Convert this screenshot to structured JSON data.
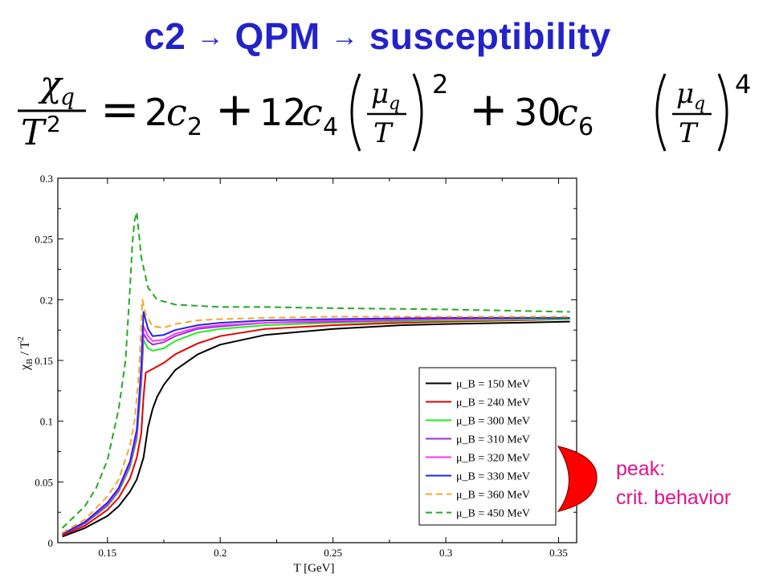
{
  "slide": {
    "title_parts": [
      "c2",
      "QPM",
      "susceptibility"
    ],
    "title_arrow": "→",
    "annotation_lines": [
      "peak:",
      "crit. behavior"
    ],
    "colors": {
      "title": "#2323c8",
      "annotation": "#e0148c",
      "bracket": "#ff0000"
    }
  },
  "formula": {
    "lhs_numerator": "χ",
    "lhs_numerator_sub": "q",
    "lhs_denominator": "T",
    "lhs_denominator_sup": "2",
    "equals": "=",
    "term1_coef": "2",
    "term1_var": "c",
    "term1_sub": "2",
    "plus": "+",
    "term2_coef": "12",
    "term2_var": "c",
    "term2_sub": "4",
    "term3_coef": "30",
    "term3_var": "c",
    "term3_sub": "6",
    "mu": "μ",
    "mu_sub": "q",
    "frac_den": "T",
    "power2": "2",
    "power4": "4"
  },
  "chart_data": {
    "type": "line",
    "xlabel": "T [GeV]",
    "ylabel_main": "χ",
    "ylabel_sub": "B",
    "ylabel_rest": " / T",
    "ylabel_sup": "2",
    "xlim": [
      0.128,
      0.358
    ],
    "ylim": [
      0,
      0.3
    ],
    "xticks": [
      0.15,
      0.2,
      0.25,
      0.3,
      0.35
    ],
    "xtick_labels": [
      "0.15",
      "0.2",
      "0.25",
      "0.3",
      "0.35"
    ],
    "yticks": [
      0,
      0.05,
      0.1,
      0.15,
      0.2,
      0.25,
      0.3
    ],
    "ytick_labels": [
      "0",
      "0.05",
      "0.1",
      "0.15",
      "0.2",
      "0.25",
      "0.3"
    ],
    "legend_position": "bottom-right",
    "series": [
      {
        "name": "μ_B = 150 MeV",
        "color": "#000000",
        "dash": "solid",
        "x": [
          0.13,
          0.14,
          0.15,
          0.155,
          0.16,
          0.163,
          0.166,
          0.168,
          0.17,
          0.172,
          0.175,
          0.18,
          0.19,
          0.2,
          0.22,
          0.25,
          0.28,
          0.3,
          0.33,
          0.355
        ],
        "y": [
          0.005,
          0.012,
          0.022,
          0.03,
          0.042,
          0.052,
          0.07,
          0.095,
          0.11,
          0.12,
          0.13,
          0.142,
          0.155,
          0.163,
          0.171,
          0.176,
          0.179,
          0.18,
          0.181,
          0.182
        ]
      },
      {
        "name": "μ_B = 240 MeV",
        "color": "#e00000",
        "dash": "solid",
        "x": [
          0.13,
          0.14,
          0.15,
          0.155,
          0.16,
          0.163,
          0.165,
          0.166,
          0.167,
          0.17,
          0.175,
          0.18,
          0.19,
          0.2,
          0.22,
          0.25,
          0.28,
          0.3,
          0.33,
          0.355
        ],
        "y": [
          0.006,
          0.014,
          0.027,
          0.037,
          0.053,
          0.07,
          0.09,
          0.12,
          0.14,
          0.143,
          0.148,
          0.155,
          0.164,
          0.17,
          0.176,
          0.179,
          0.181,
          0.182,
          0.183,
          0.184
        ]
      },
      {
        "name": "μ_B = 300 MeV",
        "color": "#22ee22",
        "dash": "solid",
        "x": [
          0.13,
          0.14,
          0.15,
          0.155,
          0.16,
          0.163,
          0.165,
          0.166,
          0.168,
          0.17,
          0.175,
          0.18,
          0.19,
          0.2,
          0.22,
          0.25,
          0.3,
          0.355
        ],
        "y": [
          0.007,
          0.016,
          0.03,
          0.042,
          0.062,
          0.085,
          0.13,
          0.167,
          0.16,
          0.158,
          0.16,
          0.166,
          0.173,
          0.176,
          0.179,
          0.181,
          0.183,
          0.184
        ]
      },
      {
        "name": "μ_B = 310 MeV",
        "color": "#9933cc",
        "dash": "solid",
        "x": [
          0.13,
          0.14,
          0.15,
          0.155,
          0.16,
          0.163,
          0.165,
          0.166,
          0.168,
          0.17,
          0.175,
          0.18,
          0.19,
          0.2,
          0.22,
          0.25,
          0.3,
          0.355
        ],
        "y": [
          0.007,
          0.016,
          0.031,
          0.043,
          0.064,
          0.088,
          0.135,
          0.172,
          0.166,
          0.163,
          0.165,
          0.17,
          0.176,
          0.178,
          0.181,
          0.182,
          0.184,
          0.185
        ]
      },
      {
        "name": "μ_B = 320 MeV",
        "color": "#ff33ff",
        "dash": "solid",
        "x": [
          0.13,
          0.14,
          0.15,
          0.155,
          0.16,
          0.163,
          0.165,
          0.166,
          0.168,
          0.17,
          0.175,
          0.18,
          0.19,
          0.2,
          0.22,
          0.25,
          0.3,
          0.355
        ],
        "y": [
          0.007,
          0.017,
          0.032,
          0.044,
          0.065,
          0.09,
          0.14,
          0.178,
          0.17,
          0.166,
          0.167,
          0.172,
          0.177,
          0.179,
          0.181,
          0.183,
          0.184,
          0.185
        ]
      },
      {
        "name": "μ_B = 330 MeV",
        "color": "#2222ee",
        "dash": "solid",
        "x": [
          0.13,
          0.14,
          0.15,
          0.155,
          0.16,
          0.163,
          0.165,
          0.166,
          0.168,
          0.17,
          0.175,
          0.18,
          0.19,
          0.2,
          0.22,
          0.25,
          0.3,
          0.355
        ],
        "y": [
          0.007,
          0.017,
          0.033,
          0.045,
          0.067,
          0.093,
          0.145,
          0.19,
          0.176,
          0.17,
          0.171,
          0.175,
          0.179,
          0.181,
          0.183,
          0.184,
          0.185,
          0.185
        ]
      },
      {
        "name": "μ_B = 360 MeV",
        "color": "#f5a623",
        "dash": "dashed",
        "x": [
          0.13,
          0.14,
          0.15,
          0.155,
          0.16,
          0.162,
          0.164,
          0.1655,
          0.167,
          0.17,
          0.175,
          0.18,
          0.19,
          0.2,
          0.22,
          0.25,
          0.3,
          0.355
        ],
        "y": [
          0.008,
          0.019,
          0.038,
          0.052,
          0.08,
          0.1,
          0.14,
          0.2,
          0.188,
          0.178,
          0.177,
          0.18,
          0.183,
          0.184,
          0.185,
          0.186,
          0.186,
          0.186
        ]
      },
      {
        "name": "μ_B = 450 MeV",
        "color": "#22aa22",
        "dash": "dashed",
        "x": [
          0.13,
          0.14,
          0.145,
          0.15,
          0.155,
          0.158,
          0.16,
          0.161,
          0.162,
          0.163,
          0.165,
          0.168,
          0.172,
          0.18,
          0.19,
          0.2,
          0.22,
          0.25,
          0.3,
          0.355
        ],
        "y": [
          0.012,
          0.03,
          0.045,
          0.068,
          0.11,
          0.15,
          0.21,
          0.245,
          0.265,
          0.272,
          0.235,
          0.21,
          0.2,
          0.196,
          0.195,
          0.194,
          0.194,
          0.193,
          0.192,
          0.19
        ]
      }
    ]
  }
}
